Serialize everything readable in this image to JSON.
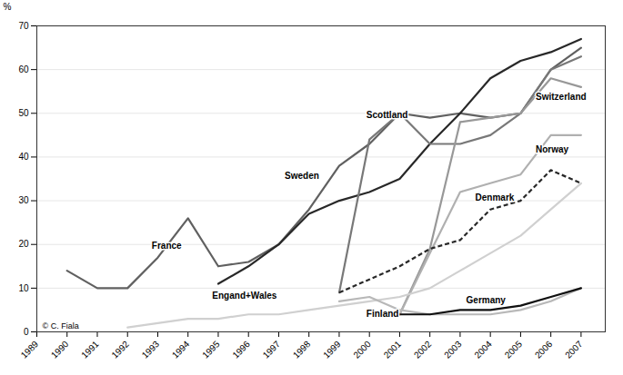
{
  "chart_data": {
    "type": "line",
    "ylabel": "%",
    "xlim": [
      1989,
      2007.8
    ],
    "xticks": [
      1989,
      1990,
      1991,
      1992,
      1993,
      1994,
      1995,
      1996,
      1997,
      1998,
      1999,
      2000,
      2001,
      2002,
      2003,
      2004,
      2005,
      2006,
      2007
    ],
    "ylim": [
      0,
      70
    ],
    "yticks": [
      0,
      10,
      20,
      30,
      40,
      50,
      60,
      70
    ],
    "grid": "y",
    "caption": "© C. Fiala",
    "series": [
      {
        "name": "France",
        "color": "#606060",
        "line_style": "solid",
        "x": [
          1990,
          1991,
          1992,
          1993,
          1994,
          1995,
          1996,
          1997,
          1998,
          1999,
          2000,
          2001,
          2002,
          2003,
          2004,
          2005,
          2006,
          2007
        ],
        "values": [
          14,
          10,
          10,
          17,
          26,
          15,
          16,
          20,
          28,
          38,
          43,
          50,
          49,
          50,
          49,
          50,
          60,
          65
        ]
      },
      {
        "name": "Sweden",
        "color": "#282828",
        "line_style": "solid",
        "x": [
          1995,
          1996,
          1997,
          1998,
          1999,
          2000,
          2001,
          2002,
          2003,
          2004,
          2005,
          2006,
          2007
        ],
        "values": [
          11,
          15,
          20,
          27,
          30,
          32,
          35,
          43,
          50,
          58,
          62,
          64,
          67
        ]
      },
      {
        "name": "Scottland",
        "color": "#787878",
        "line_style": "solid",
        "x": [
          1999,
          2000,
          2001,
          2002,
          2003,
          2004,
          2005,
          2006,
          2007
        ],
        "values": [
          9,
          44,
          50,
          43,
          43,
          45,
          50,
          60,
          63
        ]
      },
      {
        "name": "Switzerland",
        "color": "#989898",
        "line_style": "solid",
        "x": [
          2001,
          2002,
          2003,
          2004,
          2005,
          2006,
          2007
        ],
        "values": [
          4,
          19,
          48,
          49,
          50,
          58,
          56
        ]
      },
      {
        "name": "Norway",
        "color": "#b0b0b0",
        "line_style": "solid",
        "x": [
          2001,
          2002,
          2003,
          2004,
          2005,
          2006,
          2007
        ],
        "values": [
          4,
          18,
          32,
          34,
          36,
          45,
          45
        ]
      },
      {
        "name": "Denmark",
        "color": "#282828",
        "line_style": "dashed",
        "x": [
          1999,
          2000,
          2001,
          2002,
          2003,
          2004,
          2005,
          2006,
          2007
        ],
        "values": [
          9,
          12,
          15,
          19,
          21,
          28,
          30,
          37,
          34
        ]
      },
      {
        "name": "Engand+Wales",
        "color": "#d0d0d0",
        "line_style": "solid",
        "x": [
          1992,
          1993,
          1994,
          1995,
          1996,
          1997,
          1998,
          1999,
          2000,
          2001,
          2002,
          2003,
          2004,
          2005,
          2006,
          2007
        ],
        "values": [
          1,
          2,
          3,
          3,
          4,
          4,
          5,
          6,
          7,
          8,
          10,
          14,
          18,
          22,
          28,
          34
        ]
      },
      {
        "name": "Finland",
        "color": "#b8b8b8",
        "line_style": "solid",
        "x": [
          1999,
          2000,
          2001,
          2002,
          2003,
          2004,
          2005,
          2006,
          2007
        ],
        "values": [
          7,
          8,
          5,
          4,
          4,
          4,
          5,
          7,
          10
        ]
      },
      {
        "name": "Germany",
        "color": "#101010",
        "line_style": "solid",
        "x": [
          2001,
          2002,
          2003,
          2004,
          2005,
          2006,
          2007
        ],
        "values": [
          4,
          4,
          5,
          5,
          6,
          8,
          10
        ]
      }
    ],
    "annotations": [
      {
        "text": "France",
        "x": 1992.8,
        "y": 19
      },
      {
        "text": "Sweden",
        "x": 1997.2,
        "y": 35
      },
      {
        "text": "Scottland",
        "x": 1999.9,
        "y": 49
      },
      {
        "text": "Switzerland",
        "x": 2005.5,
        "y": 53
      },
      {
        "text": "Norway",
        "x": 2005.5,
        "y": 41
      },
      {
        "text": "Denmark",
        "x": 2003.5,
        "y": 30
      },
      {
        "text": "Engand+Wales",
        "x": 1994.8,
        "y": 7.5
      },
      {
        "text": "Finland",
        "x": 1999.9,
        "y": 3.5
      },
      {
        "text": "Germany",
        "x": 2003.2,
        "y": 6.5
      }
    ]
  }
}
